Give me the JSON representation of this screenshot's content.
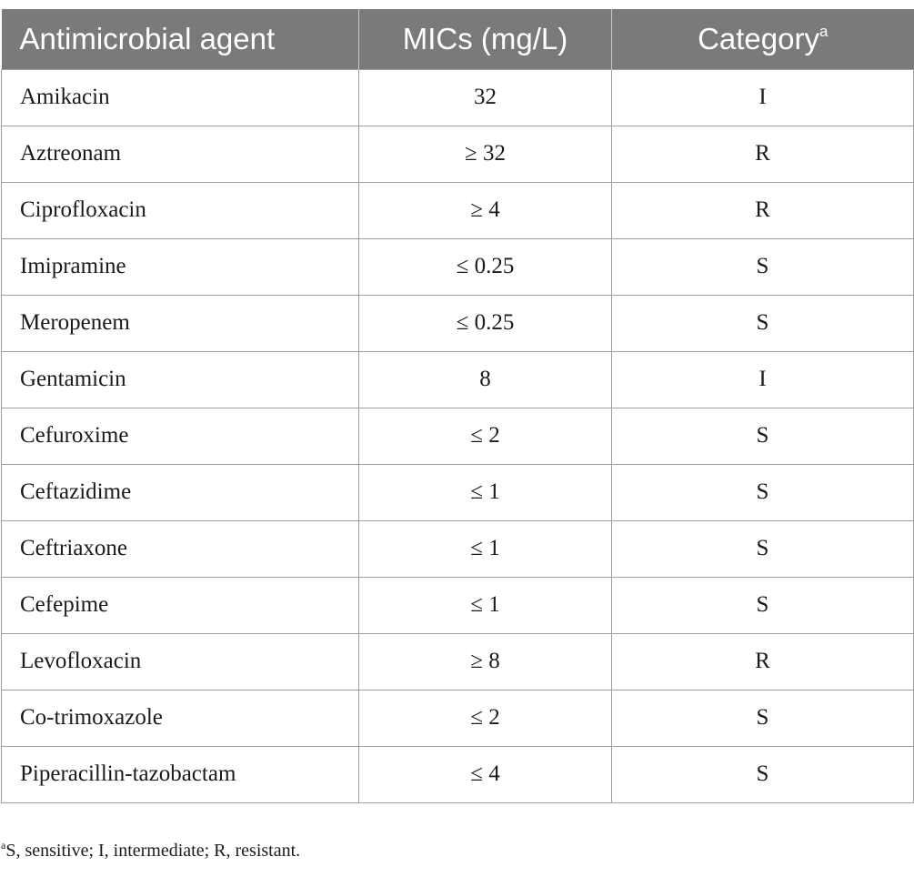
{
  "table": {
    "headers": {
      "agent": "Antimicrobial agent",
      "mic": "MICs (mg/L)",
      "category": "Category",
      "category_sup": "a"
    },
    "rows": [
      {
        "agent": "Amikacin",
        "mic": "32",
        "category": "I"
      },
      {
        "agent": "Aztreonam",
        "mic": "≥ 32",
        "category": "R"
      },
      {
        "agent": "Ciprofloxacin",
        "mic": "≥ 4",
        "category": "R"
      },
      {
        "agent": "Imipramine",
        "mic": "≤ 0.25",
        "category": "S"
      },
      {
        "agent": "Meropenem",
        "mic": "≤ 0.25",
        "category": "S"
      },
      {
        "agent": "Gentamicin",
        "mic": "8",
        "category": "I"
      },
      {
        "agent": "Cefuroxime",
        "mic": "≤ 2",
        "category": "S"
      },
      {
        "agent": "Ceftazidime",
        "mic": "≤ 1",
        "category": "S"
      },
      {
        "agent": "Ceftriaxone",
        "mic": "≤ 1",
        "category": "S"
      },
      {
        "agent": "Cefepime",
        "mic": "≤ 1",
        "category": "S"
      },
      {
        "agent": "Levofloxacin",
        "mic": "≥ 8",
        "category": "R"
      },
      {
        "agent": "Co-trimoxazole",
        "mic": "≤ 2",
        "category": "S"
      },
      {
        "agent": "Piperacillin-tazobactam",
        "mic": "≤ 4",
        "category": "S"
      }
    ]
  },
  "footnote": {
    "marker": "a",
    "text": "S, sensitive; I, intermediate; R, resistant."
  },
  "colors": {
    "header_background": "#7a7a7a",
    "header_text": "#ffffff",
    "grid_lines": "#9e9e9e"
  }
}
